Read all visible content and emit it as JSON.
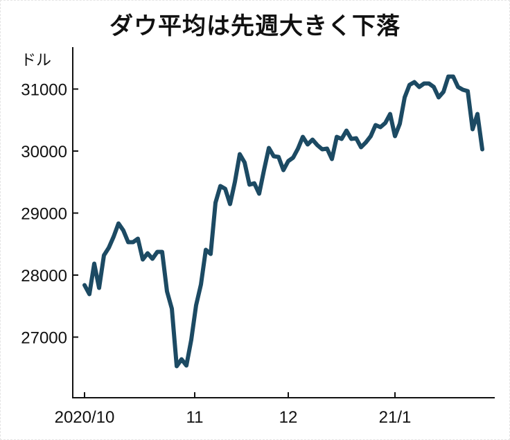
{
  "chart_data": {
    "type": "line",
    "title": "ダウ平均は先週大きく下落",
    "ylabel": "ドル",
    "xlabel": "",
    "ylim": [
      26000,
      31700
    ],
    "yticks": [
      27000,
      28000,
      29000,
      30000,
      31000
    ],
    "xticks": [
      {
        "date": "2020-10-01",
        "label": "2020/10"
      },
      {
        "date": "2020-11-02",
        "label": "11"
      },
      {
        "date": "2020-12-01",
        "label": "12"
      },
      {
        "date": "2021-01-04",
        "label": "21/1"
      }
    ],
    "grid": false,
    "line_color": "#1c4a63",
    "x": [
      "2020-10-01",
      "2020-10-02",
      "2020-10-05",
      "2020-10-06",
      "2020-10-07",
      "2020-10-08",
      "2020-10-09",
      "2020-10-12",
      "2020-10-13",
      "2020-10-14",
      "2020-10-15",
      "2020-10-16",
      "2020-10-19",
      "2020-10-20",
      "2020-10-21",
      "2020-10-22",
      "2020-10-23",
      "2020-10-26",
      "2020-10-27",
      "2020-10-28",
      "2020-10-29",
      "2020-10-30",
      "2020-11-02",
      "2020-11-03",
      "2020-11-04",
      "2020-11-05",
      "2020-11-06",
      "2020-11-09",
      "2020-11-10",
      "2020-11-11",
      "2020-11-12",
      "2020-11-13",
      "2020-11-16",
      "2020-11-17",
      "2020-11-18",
      "2020-11-19",
      "2020-11-20",
      "2020-11-23",
      "2020-11-24",
      "2020-11-25",
      "2020-11-27",
      "2020-11-30",
      "2020-12-01",
      "2020-12-02",
      "2020-12-03",
      "2020-12-04",
      "2020-12-07",
      "2020-12-08",
      "2020-12-09",
      "2020-12-10",
      "2020-12-11",
      "2020-12-14",
      "2020-12-15",
      "2020-12-16",
      "2020-12-17",
      "2020-12-18",
      "2020-12-21",
      "2020-12-22",
      "2020-12-23",
      "2020-12-24",
      "2020-12-28",
      "2020-12-29",
      "2020-12-30",
      "2020-12-31",
      "2021-01-04",
      "2021-01-05",
      "2021-01-06",
      "2021-01-07",
      "2021-01-08",
      "2021-01-11",
      "2021-01-12",
      "2021-01-13",
      "2021-01-14",
      "2021-01-15",
      "2021-01-19",
      "2021-01-20",
      "2021-01-21",
      "2021-01-22",
      "2021-01-25",
      "2021-01-26",
      "2021-01-27",
      "2021-01-28",
      "2021-01-29"
    ],
    "values": [
      27838,
      27693,
      28184,
      27793,
      28318,
      28441,
      28620,
      28832,
      28720,
      28531,
      28531,
      28587,
      28251,
      28352,
      28263,
      28374,
      28374,
      27737,
      27458,
      26531,
      26642,
      26542,
      26955,
      27514,
      27849,
      28408,
      28341,
      29168,
      29436,
      29391,
      29145,
      29503,
      29950,
      29816,
      29458,
      29480,
      29313,
      29693,
      30050,
      29916,
      29905,
      29693,
      29838,
      29894,
      30039,
      30229,
      30106,
      30184,
      30095,
      30028,
      30039,
      29872,
      30229,
      30196,
      30330,
      30196,
      30207,
      30061,
      30140,
      30240,
      30419,
      30385,
      30453,
      30598,
      30240,
      30441,
      30866,
      31067,
      31112,
      31034,
      31089,
      31089,
      31034,
      30866,
      30955,
      31201,
      31201,
      31034,
      30989,
      30966,
      30352,
      30598,
      30028
    ]
  }
}
